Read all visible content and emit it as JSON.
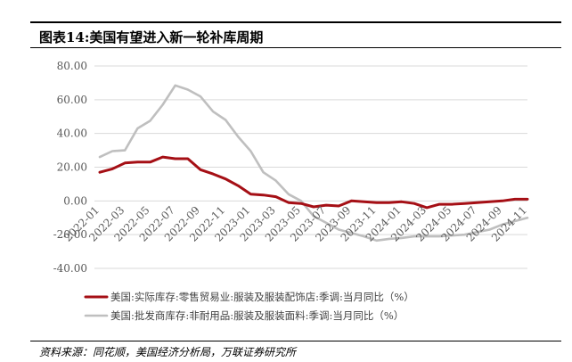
{
  "title": "图表14:美国有望进入新一轮补库周期",
  "source": "资料来源：同花顺，美国经济分析局，万联证券研究所",
  "chart_data": {
    "type": "line",
    "categories": [
      "2022-01",
      "2022-02",
      "2022-03",
      "2022-04",
      "2022-05",
      "2022-06",
      "2022-07",
      "2022-08",
      "2022-09",
      "2022-10",
      "2022-11",
      "2022-12",
      "2023-01",
      "2023-02",
      "2023-03",
      "2023-04",
      "2023-05",
      "2023-06",
      "2023-07",
      "2023-08",
      "2023-09",
      "2023-10",
      "2023-11",
      "2023-12",
      "2024-01",
      "2024-02",
      "2024-03",
      "2024-04",
      "2024-05",
      "2024-06",
      "2024-07",
      "2024-08",
      "2024-09",
      "2024-10",
      "2024-11"
    ],
    "tick_labels": [
      "2022-01",
      "2022-03",
      "2022-05",
      "2022-07",
      "2022-09",
      "2022-11",
      "2023-01",
      "2023-03",
      "2023-05",
      "2023-07",
      "2023-09",
      "2023-11",
      "2024-01",
      "2024-03",
      "2024-05",
      "2024-07",
      "2024-09",
      "2024-11"
    ],
    "y_ticks": [
      "80.00",
      "60.00",
      "40.00",
      "20.00",
      "0.00",
      "-20.00",
      "-40.00"
    ],
    "ylim": [
      -40,
      80
    ],
    "grid": true,
    "legend_position": "bottom",
    "series": [
      {
        "name": "美国:实际库存:零售贸易业:服装及服装配饰店:季调:当月同比（%）",
        "color": "#a50f15",
        "values": [
          17.0,
          19.0,
          22.5,
          23.0,
          23.0,
          26.0,
          25.0,
          25.0,
          18.5,
          16.0,
          13.0,
          9.0,
          4.0,
          3.5,
          2.5,
          -1.0,
          -1.5,
          -3.5,
          -2.5,
          -3.0,
          0.0,
          -0.5,
          -1.0,
          -1.0,
          -0.5,
          -1.5,
          -4.0,
          -2.0,
          -2.0,
          -1.5,
          -1.0,
          -0.5,
          0.0,
          1.0,
          1.0
        ]
      },
      {
        "name": "美国:批发商库存:非耐用品:服装及服装面料:季调:当月同比（%）",
        "color": "#bfbfbf",
        "values": [
          26.0,
          29.5,
          30.0,
          43.0,
          47.5,
          57.0,
          68.5,
          66.0,
          62.0,
          53.0,
          48.0,
          38.0,
          29.5,
          17.0,
          12.0,
          4.0,
          0.0,
          -9.0,
          -13.0,
          -17.0,
          -19.0,
          -21.0,
          -23.5,
          -22.5,
          -22.0,
          -21.0,
          -21.0,
          -21.0,
          -20.5,
          -20.0,
          -18.5,
          -17.0,
          -14.0,
          -12.0,
          -10.0
        ]
      }
    ]
  }
}
